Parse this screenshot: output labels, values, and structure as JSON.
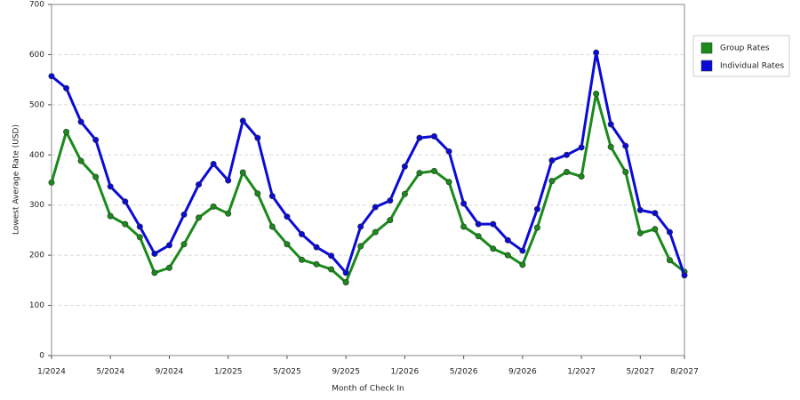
{
  "chart_data": {
    "type": "line",
    "x_label": "Month of Check In",
    "y_label": "Lowest Average Rate (USD)",
    "categories": [
      "1/2024",
      null,
      null,
      null,
      "5/2024",
      null,
      null,
      null,
      "9/2024",
      null,
      null,
      null,
      "1/2025",
      null,
      null,
      null,
      "5/2025",
      null,
      null,
      null,
      "9/2025",
      null,
      null,
      null,
      "1/2026",
      null,
      null,
      null,
      "5/2026",
      null,
      null,
      null,
      "9/2026",
      null,
      null,
      null,
      "1/2027",
      null,
      null,
      null,
      "5/2027",
      null,
      null,
      "8/2027"
    ],
    "series": [
      {
        "name": "Group Rates",
        "color": "#1a8a1a",
        "values": [
          345,
          446,
          388,
          356,
          278,
          262,
          236,
          165,
          175,
          222,
          275,
          297,
          283,
          365,
          323,
          257,
          222,
          191,
          182,
          172,
          146,
          218,
          246,
          270,
          322,
          364,
          368,
          346,
          257,
          238,
          213,
          200,
          181,
          255,
          348,
          366,
          357,
          522,
          416,
          366,
          244,
          252,
          190,
          167
        ]
      },
      {
        "name": "Individual Rates",
        "color": "#0a0ad8",
        "values": [
          557,
          533,
          466,
          430,
          337,
          307,
          257,
          203,
          220,
          281,
          341,
          382,
          349,
          468,
          434,
          318,
          277,
          242,
          216,
          199,
          165,
          257,
          296,
          309,
          377,
          434,
          437,
          407,
          303,
          262,
          262,
          230,
          209,
          292,
          389,
          400,
          415,
          604,
          461,
          418,
          290,
          284,
          246,
          160
        ]
      }
    ],
    "ylim": [
      0,
      700
    ],
    "yticks": [
      0,
      100,
      200,
      300,
      400,
      500,
      600,
      700
    ],
    "grid": true,
    "legend": "right"
  }
}
